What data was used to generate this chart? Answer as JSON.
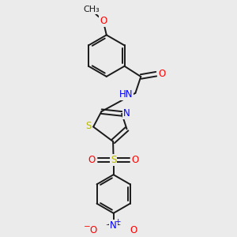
{
  "bg_color": "#ebebeb",
  "bond_color": "#1a1a1a",
  "atom_colors": {
    "O": "#ff0000",
    "N": "#0000ff",
    "S": "#b8b800",
    "H": "#008080",
    "C": "#1a1a1a"
  },
  "line_width": 1.4,
  "dbo_ring": 0.01,
  "dbo_sub": 0.01,
  "font_size": 8.5,
  "figsize": [
    3.0,
    3.0
  ],
  "dpi": 100
}
